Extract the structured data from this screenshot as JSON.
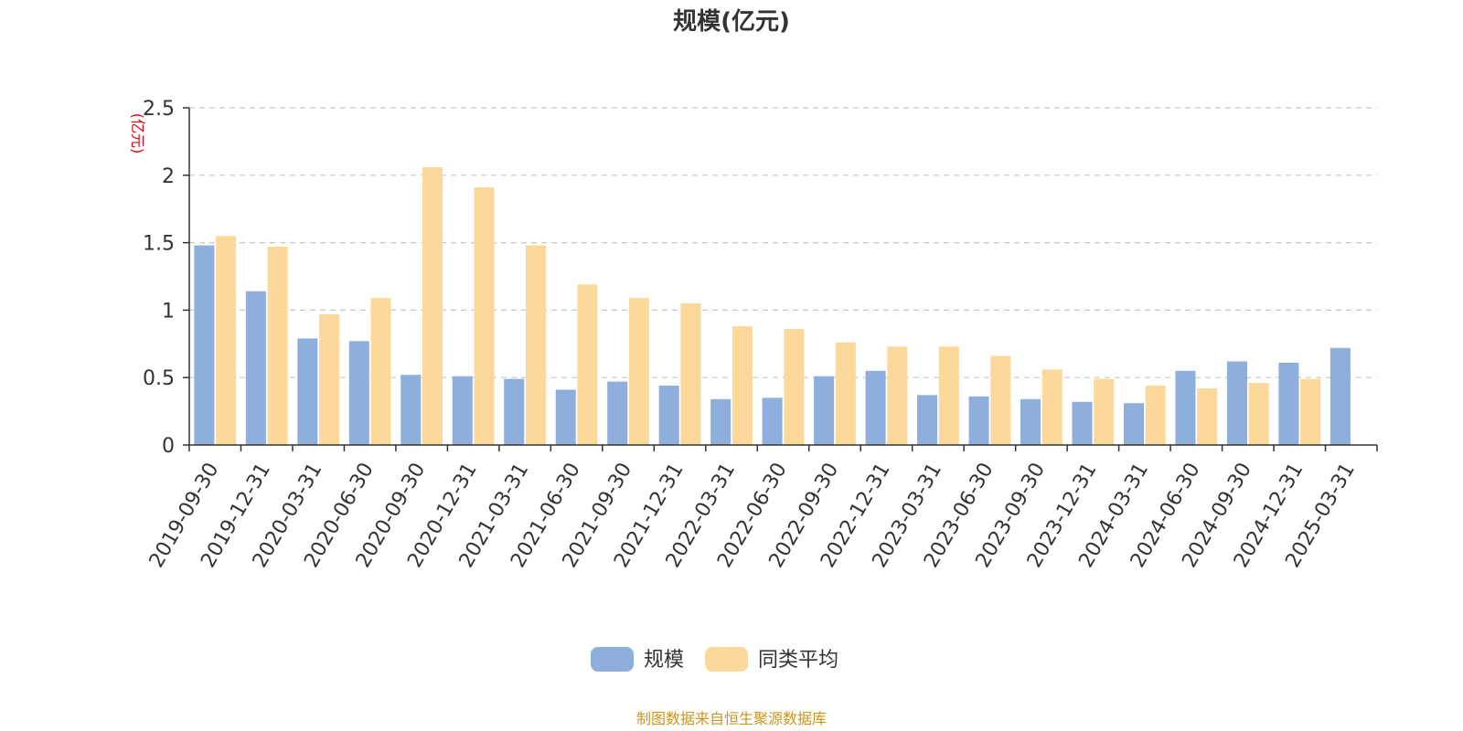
{
  "chart_data": {
    "type": "bar",
    "title": "规模(亿元)",
    "ylabel": "(亿元)",
    "ylim": [
      0,
      2.5
    ],
    "yticks": [
      "0",
      "0.5",
      "1",
      "1.5",
      "2",
      "2.5"
    ],
    "grid": true,
    "legend_position": "bottom",
    "categories": [
      "2019-09-30",
      "2019-12-31",
      "2020-03-31",
      "2020-06-30",
      "2020-09-30",
      "2020-12-31",
      "2021-03-31",
      "2021-06-30",
      "2021-09-30",
      "2021-12-31",
      "2022-03-31",
      "2022-06-30",
      "2022-09-30",
      "2022-12-31",
      "2023-03-31",
      "2023-06-30",
      "2023-09-30",
      "2023-12-31",
      "2024-03-31",
      "2024-06-30",
      "2024-09-30",
      "2024-12-31",
      "2025-03-31"
    ],
    "series": [
      {
        "name": "规模",
        "color": "#8eaedc",
        "values": [
          1.48,
          1.14,
          0.79,
          0.77,
          0.52,
          0.51,
          0.49,
          0.41,
          0.47,
          0.44,
          0.34,
          0.35,
          0.51,
          0.55,
          0.37,
          0.36,
          0.34,
          0.32,
          0.31,
          0.55,
          0.62,
          0.61,
          0.72
        ]
      },
      {
        "name": "同类平均",
        "color": "#fdd89b",
        "values": [
          1.55,
          1.47,
          0.97,
          1.09,
          2.06,
          1.91,
          1.48,
          1.19,
          1.09,
          1.05,
          0.88,
          0.86,
          0.76,
          0.73,
          0.73,
          0.66,
          0.56,
          0.49,
          0.44,
          0.42,
          0.46,
          0.49,
          null
        ]
      }
    ],
    "source_note": "制图数据来自恒生聚源数据库"
  }
}
